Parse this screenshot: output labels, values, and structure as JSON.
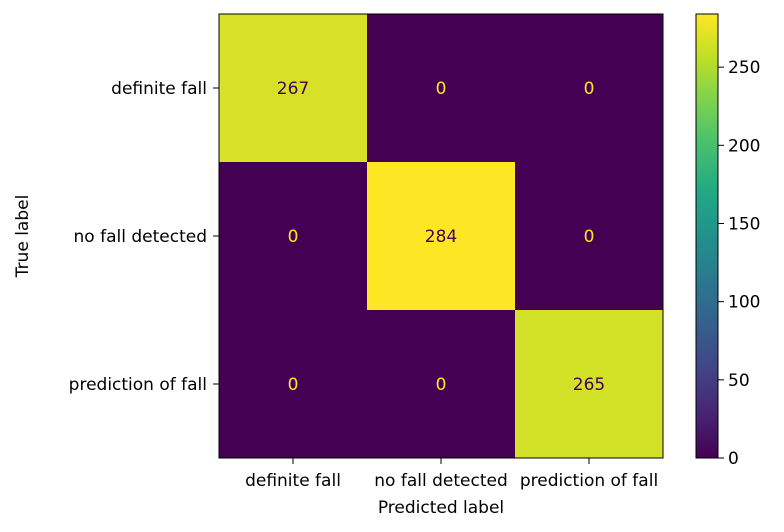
{
  "chart_data": {
    "type": "heatmap",
    "x_categories": [
      "definite fall",
      "no fall detected",
      "prediction of fall"
    ],
    "y_categories": [
      "definite fall",
      "no fall detected",
      "prediction of fall"
    ],
    "values": [
      [
        267,
        0,
        0
      ],
      [
        0,
        284,
        0
      ],
      [
        0,
        0,
        265
      ]
    ],
    "xlabel": "Predicted label",
    "ylabel": "True label",
    "colormap": "viridis",
    "colorbar": {
      "range": [
        0,
        284
      ],
      "ticks": [
        0,
        50,
        100,
        150,
        200,
        250
      ],
      "tick_labels": [
        "0",
        "50",
        "100",
        "150",
        "200",
        "250"
      ]
    },
    "colors": {
      "low": "#440154",
      "high": "#fde725",
      "text_on_dark": "#fde725",
      "text_on_light": "#440154"
    }
  }
}
